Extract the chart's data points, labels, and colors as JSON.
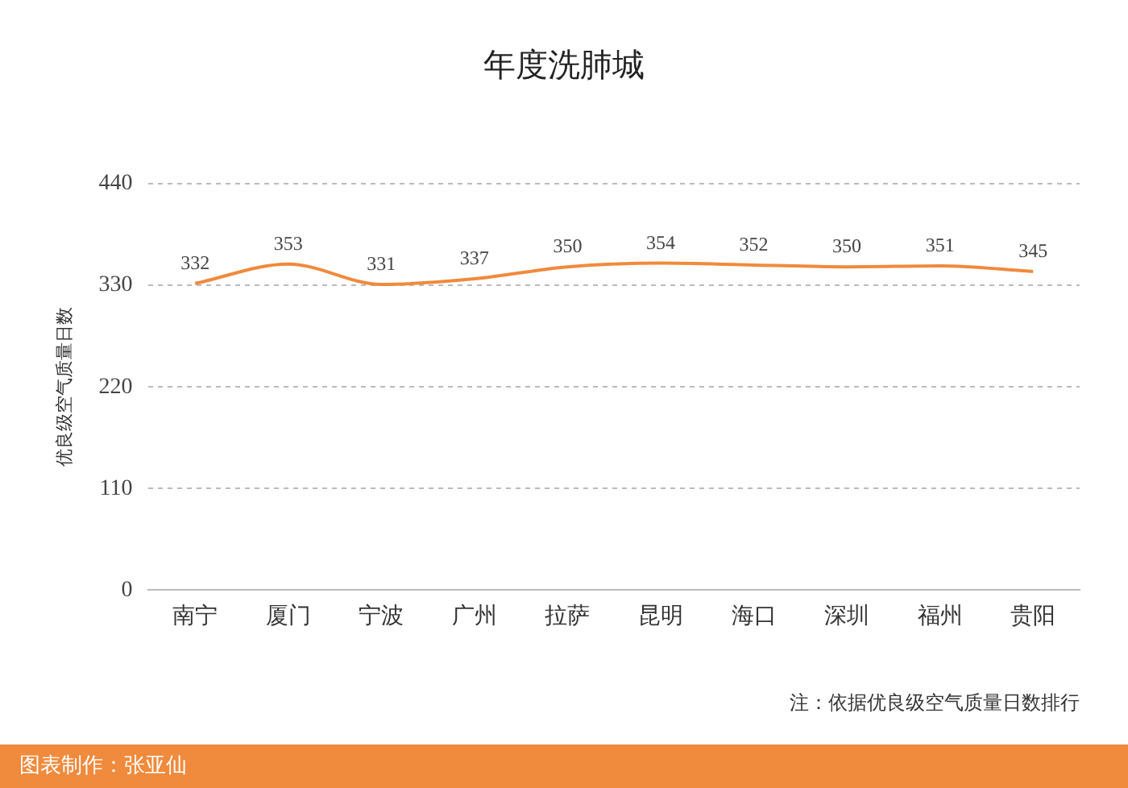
{
  "chart_data": {
    "type": "line",
    "title": "年度洗肺城",
    "ylabel": "优良级空气质量日数",
    "categories": [
      "南宁",
      "厦门",
      "宁波",
      "广州",
      "拉萨",
      "昆明",
      "海口",
      "深圳",
      "福州",
      "贵阳"
    ],
    "series": [
      {
        "color": "#f08a3c",
        "values": [
          332,
          353,
          331,
          337,
          350,
          354,
          352,
          350,
          351,
          345
        ]
      }
    ],
    "ylim": [
      0,
      440
    ],
    "yticks": [
      0,
      110,
      220,
      330,
      440
    ],
    "grid": "y",
    "legend": false,
    "marker": "none",
    "line_style": "solid",
    "data_labels": true,
    "annotations": [
      "注：依据优良级空气质量日数排行",
      "图表制作：张亚仙"
    ]
  }
}
